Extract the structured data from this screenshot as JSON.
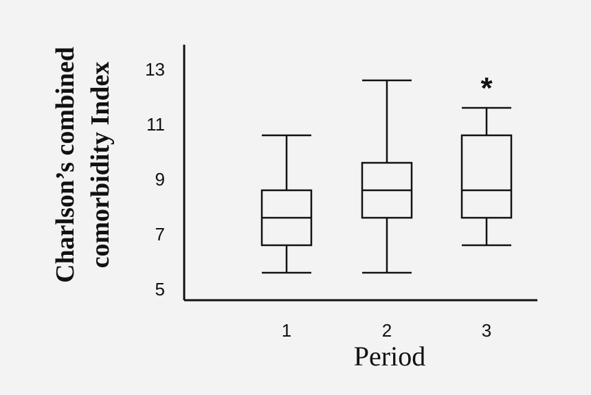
{
  "chart_data": {
    "type": "box",
    "xlabel": "Period",
    "ylabel_lines": [
      "Charlson’s combined",
      "comorbidity Index"
    ],
    "categories": [
      "1",
      "2",
      "3"
    ],
    "y_ticks": [
      5,
      7,
      9,
      11,
      13
    ],
    "ylim": [
      4.6,
      13.9
    ],
    "boxes": [
      {
        "category": "1",
        "whisker_low": 5.6,
        "q1": 6.6,
        "median": 7.6,
        "q3": 8.6,
        "whisker_high": 10.6,
        "annotation": ""
      },
      {
        "category": "2",
        "whisker_low": 5.6,
        "q1": 7.6,
        "median": 8.6,
        "q3": 9.6,
        "whisker_high": 12.6,
        "annotation": ""
      },
      {
        "category": "3",
        "whisker_low": 6.6,
        "q1": 7.6,
        "median": 8.6,
        "q3": 10.6,
        "whisker_high": 11.6,
        "annotation": "*"
      }
    ]
  }
}
